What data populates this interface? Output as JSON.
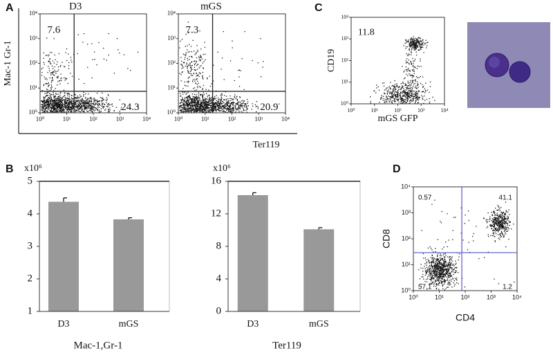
{
  "panel_labels": [
    "A",
    "B",
    "C",
    "D"
  ],
  "chart_data": [
    {
      "type": "flow",
      "title": "D3",
      "ylabel": "Mac-1 Gr-1",
      "log": true,
      "xlim": [
        1,
        10000
      ],
      "ylim": [
        1,
        10000
      ],
      "xticks": [
        {
          "value": 1,
          "label": "10⁰"
        },
        {
          "value": 10,
          "label": "10¹"
        },
        {
          "value": 100,
          "label": "10²"
        },
        {
          "value": 1000,
          "label": "10³"
        },
        {
          "value": 10000,
          "label": "10⁴"
        }
      ],
      "yticks": [
        {
          "value": 1,
          "label": "10⁰"
        },
        {
          "value": 10,
          "label": "10¹"
        },
        {
          "value": 100,
          "label": "10²"
        },
        {
          "value": 1000,
          "label": "10³"
        },
        {
          "value": 10000,
          "label": "10⁴"
        }
      ],
      "gate": {
        "x": 19,
        "y": 7.4
      },
      "gate_color": "#222222",
      "quadrant_values": [
        7.6,
        24.3
      ],
      "quadrant_corners": [
        "upper-left",
        "lower-right"
      ]
    },
    {
      "type": "flow",
      "title": "mGS",
      "xlabel": "Ter119",
      "log": true,
      "xlim": [
        1,
        10000
      ],
      "ylim": [
        1,
        10000
      ],
      "xticks": [
        {
          "value": 1,
          "label": "10⁰"
        },
        {
          "value": 10,
          "label": "10¹"
        },
        {
          "value": 100,
          "label": "10²"
        },
        {
          "value": 1000,
          "label": "10³"
        },
        {
          "value": 10000,
          "label": "10⁴"
        }
      ],
      "yticks": [
        {
          "value": 1,
          "label": "10⁰"
        },
        {
          "value": 10,
          "label": "10¹"
        },
        {
          "value": 100,
          "label": "10²"
        },
        {
          "value": 1000,
          "label": "10³"
        },
        {
          "value": 10000,
          "label": "10⁴"
        }
      ],
      "gate": {
        "x": 19,
        "y": 7.4
      },
      "gate_color": "#222222",
      "quadrant_values": [
        7.3,
        20.9
      ],
      "quadrant_corners": [
        "upper-left",
        "lower-right"
      ]
    },
    {
      "type": "flow",
      "xlabel": "mGS GFP",
      "ylabel": "CD19",
      "log": true,
      "xlim": [
        1,
        10000
      ],
      "ylim": [
        1,
        10000
      ],
      "xticks": [
        {
          "value": 1,
          "label": "10⁰"
        },
        {
          "value": 10,
          "label": "10¹"
        },
        {
          "value": 100,
          "label": "10²"
        },
        {
          "value": 1000,
          "label": "10³"
        },
        {
          "value": 10000,
          "label": "10⁴"
        }
      ],
      "yticks": [
        {
          "value": 1,
          "label": "10⁰"
        },
        {
          "value": 10,
          "label": "10¹"
        },
        {
          "value": 100,
          "label": "10²"
        },
        {
          "value": 1000,
          "label": "10³"
        },
        {
          "value": 10000,
          "label": "10⁴"
        }
      ],
      "quadrant_values": [
        11.8
      ],
      "quadrant_corners": [
        "upper-left"
      ]
    },
    {
      "type": "bar",
      "ylabel": "x10⁶",
      "xlabel": "Mac-1,Gr-1",
      "color": "#999999",
      "categories": [
        "D3",
        "mGS"
      ],
      "values": [
        4.37,
        3.83
      ],
      "errors": [
        0.12,
        0.05
      ],
      "ylim": [
        1,
        5
      ],
      "yticks": [
        1,
        2,
        3,
        4,
        5
      ]
    },
    {
      "type": "bar",
      "ylabel": "x10⁶",
      "xlabel": "Ter119",
      "color": "#999999",
      "categories": [
        "D3",
        "mGS"
      ],
      "values": [
        14.3,
        10.1
      ],
      "errors": [
        0.3,
        0.2
      ],
      "ylim": [
        0,
        16
      ],
      "yticks": [
        0,
        4,
        8,
        12,
        16
      ]
    },
    {
      "type": "flow",
      "xlabel": "CD4",
      "ylabel": "CD8",
      "log": true,
      "xlim": [
        1,
        10000
      ],
      "ylim": [
        1,
        10000
      ],
      "xticks": [
        {
          "value": 1,
          "label": "10⁰"
        },
        {
          "value": 10,
          "label": "10¹"
        },
        {
          "value": 100,
          "label": "10²"
        },
        {
          "value": 1000,
          "label": "10³"
        },
        {
          "value": 10000,
          "label": "10⁴"
        }
      ],
      "yticks": [
        {
          "value": 1,
          "label": "10⁰"
        },
        {
          "value": 10,
          "label": "10¹"
        },
        {
          "value": 100,
          "label": "10²"
        },
        {
          "value": 1000,
          "label": "10³"
        },
        {
          "value": 10000,
          "label": "10⁴"
        }
      ],
      "gate": {
        "x": 74,
        "y": 29
      },
      "gate_color": "#6666cc",
      "quadrant_values": [
        0.57,
        41.1,
        57.1,
        1.2
      ],
      "quadrant_corners": [
        "upper-left",
        "upper-right",
        "lower-left",
        "lower-right"
      ]
    }
  ]
}
